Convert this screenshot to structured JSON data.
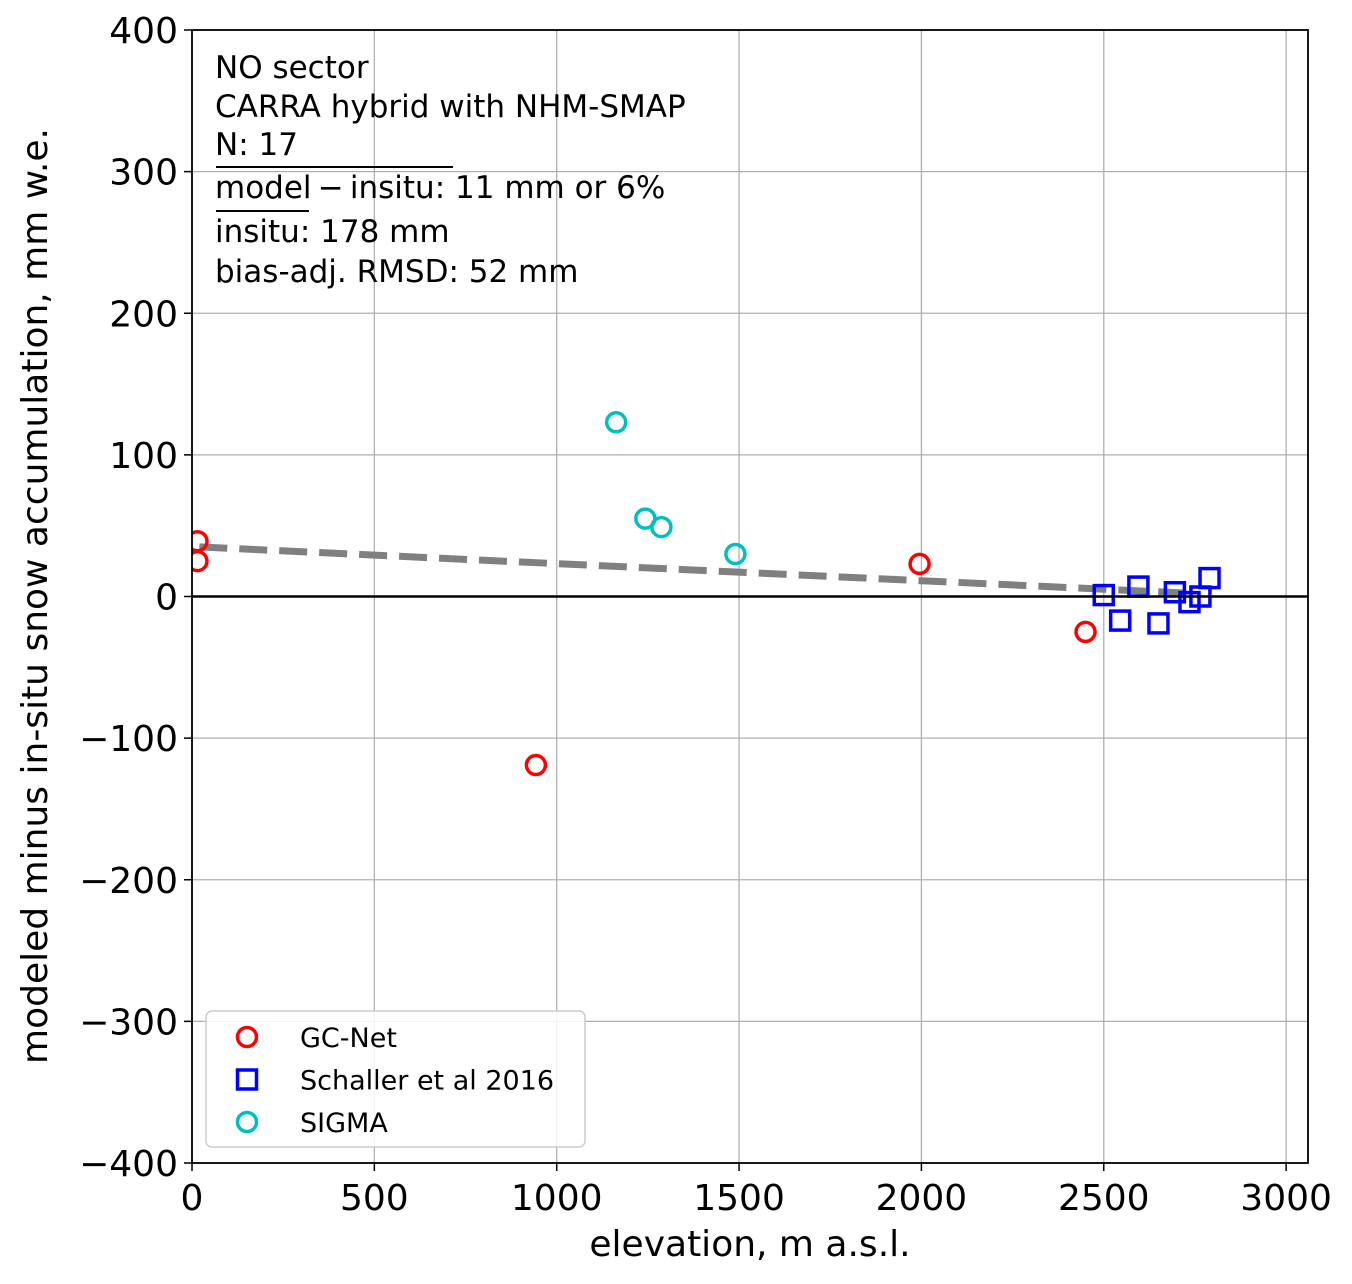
{
  "chart_data": {
    "type": "scatter",
    "xlabel": "elevation, m a.s.l.",
    "ylabel": "modeled minus in-situ snow accumulation, mm w.e.",
    "xlim": [
      0,
      3060
    ],
    "ylim": [
      -400,
      400
    ],
    "xticks": [
      0,
      500,
      1000,
      1500,
      2000,
      2500,
      3000
    ],
    "xtick_labels": [
      "0",
      "500",
      "1000",
      "1500",
      "2000",
      "2500",
      "3000"
    ],
    "yticks": [
      -400,
      -300,
      -200,
      -100,
      0,
      100,
      200,
      300,
      400
    ],
    "ytick_labels": [
      "−400",
      "−300",
      "−200",
      "−100",
      "0",
      "100",
      "200",
      "300",
      "400"
    ],
    "grid": true,
    "zero_line": true,
    "legend_position": "lower-left",
    "annotation": {
      "line1": "NO sector",
      "line2": "CARRA hybrid with NHM-SMAP",
      "line3": "N: 17",
      "bias_label": "model − insitu",
      "bias_value": ": 11 mm or 6%",
      "mean_label": "insitu",
      "mean_value": ": 178 mm",
      "line6": "bias-adj. RMSD: 52 mm"
    },
    "trend_line": {
      "x": [
        20,
        2760
      ],
      "y": [
        35,
        2
      ],
      "color": "#808080",
      "style": "dashed"
    },
    "series": [
      {
        "name": "GC-Net",
        "marker": "circle",
        "color": "#ff0000",
        "points": [
          {
            "x": 15,
            "y": 39
          },
          {
            "x": 15,
            "y": 25
          },
          {
            "x": 943,
            "y": -119
          },
          {
            "x": 1995,
            "y": 23
          },
          {
            "x": 2450,
            "y": -25
          }
        ]
      },
      {
        "name": "Schaller et al 2016",
        "marker": "square",
        "color": "#0000ff",
        "points": [
          {
            "x": 2500,
            "y": 1
          },
          {
            "x": 2545,
            "y": -17
          },
          {
            "x": 2595,
            "y": 7
          },
          {
            "x": 2650,
            "y": -19
          },
          {
            "x": 2695,
            "y": 3
          },
          {
            "x": 2735,
            "y": -4
          },
          {
            "x": 2765,
            "y": 0
          },
          {
            "x": 2790,
            "y": 13
          }
        ]
      },
      {
        "name": "SIGMA",
        "marker": "circle",
        "color": "#00bfbf",
        "points": [
          {
            "x": 1163,
            "y": 123
          },
          {
            "x": 1243,
            "y": 55
          },
          {
            "x": 1287,
            "y": 49
          },
          {
            "x": 1490,
            "y": 30
          }
        ]
      }
    ]
  }
}
